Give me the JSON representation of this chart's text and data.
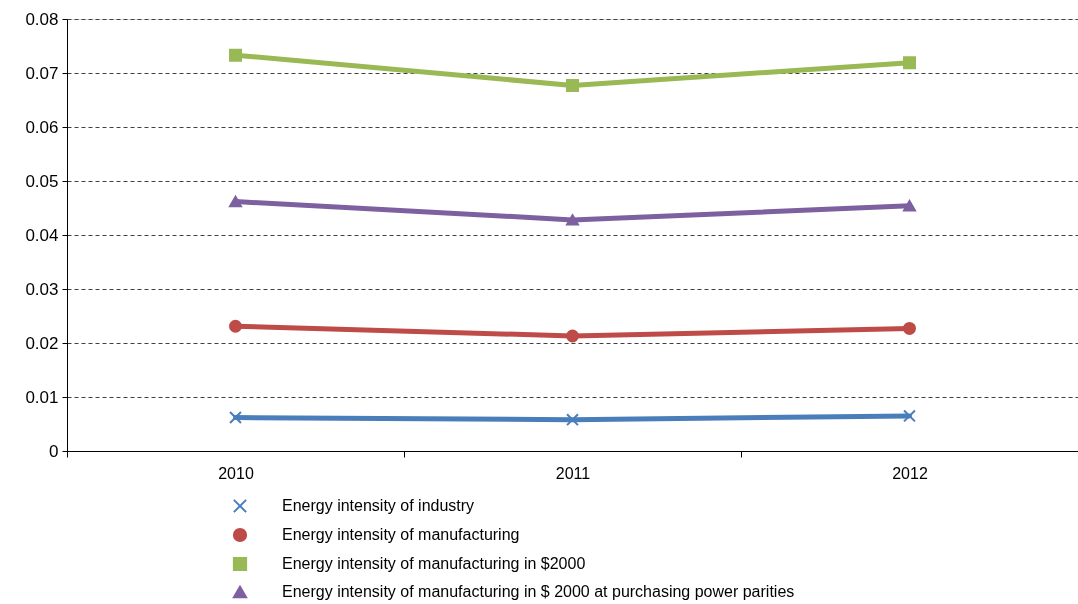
{
  "chart_data": {
    "type": "line",
    "categories": [
      "2010",
      "2011",
      "2012"
    ],
    "ylim": [
      0,
      0.08
    ],
    "yticks": [
      0,
      0.01,
      0.02,
      0.03,
      0.04,
      0.05,
      0.06,
      0.07,
      0.08
    ],
    "grid": "y",
    "legend": "bottom",
    "line_style": "solid",
    "series": [
      {
        "name": "Energy intensity of industry",
        "color": "#4a7ebb",
        "marker": "cross",
        "values": [
          0.0062,
          0.0058,
          0.0065
        ]
      },
      {
        "name": "Energy intensity of manufacturing",
        "color": "#be4b48",
        "marker": "circle",
        "values": [
          0.0231,
          0.0213,
          0.0227
        ]
      },
      {
        "name": "Energy intensity of manufacturing in $2000",
        "color": "#98b954",
        "marker": "square",
        "values": [
          0.0733,
          0.0677,
          0.0719
        ]
      },
      {
        "name": "Energy intensity of manufacturing in $ 2000 at purchasing power parities",
        "color": "#7d60a0",
        "marker": "triangle",
        "values": [
          0.0462,
          0.0428,
          0.0454
        ]
      }
    ]
  }
}
